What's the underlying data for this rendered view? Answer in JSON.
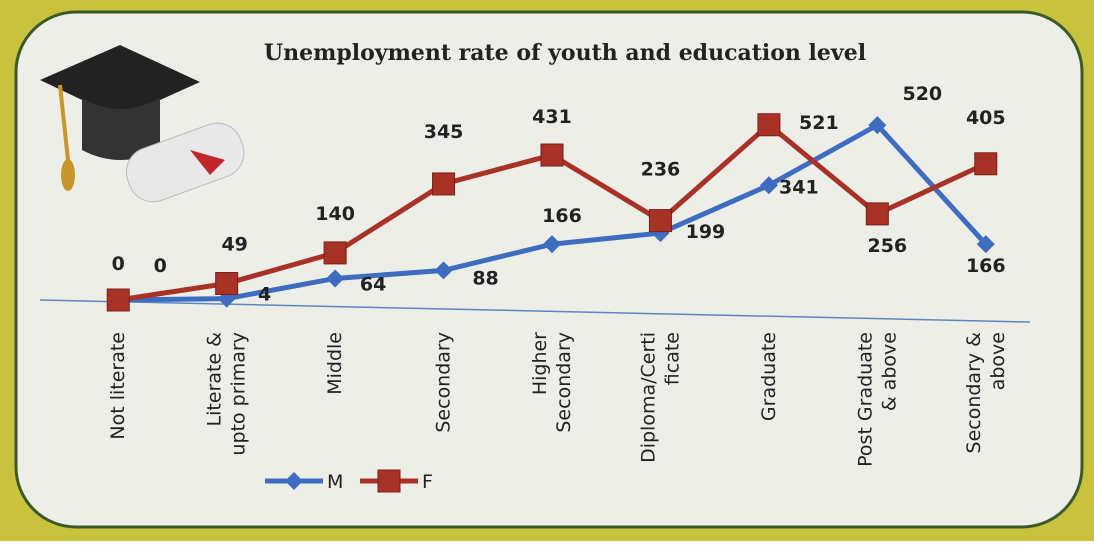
{
  "chart_data": {
    "type": "line",
    "title": "Unemployment rate of youth and education level",
    "categories": [
      [
        "Not literate"
      ],
      [
        "Literate &",
        "upto primary"
      ],
      [
        "Middle"
      ],
      [
        "Secondary"
      ],
      [
        "Higher",
        "Secondary"
      ],
      [
        "Diploma/Certi",
        "ficate"
      ],
      [
        "Graduate"
      ],
      [
        "Post Graduate",
        "& above"
      ],
      [
        "Secondary &",
        "above"
      ]
    ],
    "series": [
      {
        "name": "M",
        "color": "#3d6cc0",
        "marker": "diamond",
        "values": [
          0,
          4,
          64,
          88,
          166,
          199,
          341,
          520,
          166
        ]
      },
      {
        "name": "F",
        "color": "#a93226",
        "marker": "square",
        "values": [
          0,
          49,
          140,
          345,
          431,
          236,
          521,
          256,
          405
        ]
      }
    ],
    "ylim": [
      0,
      550
    ],
    "grid": false,
    "legend": "bottom"
  }
}
